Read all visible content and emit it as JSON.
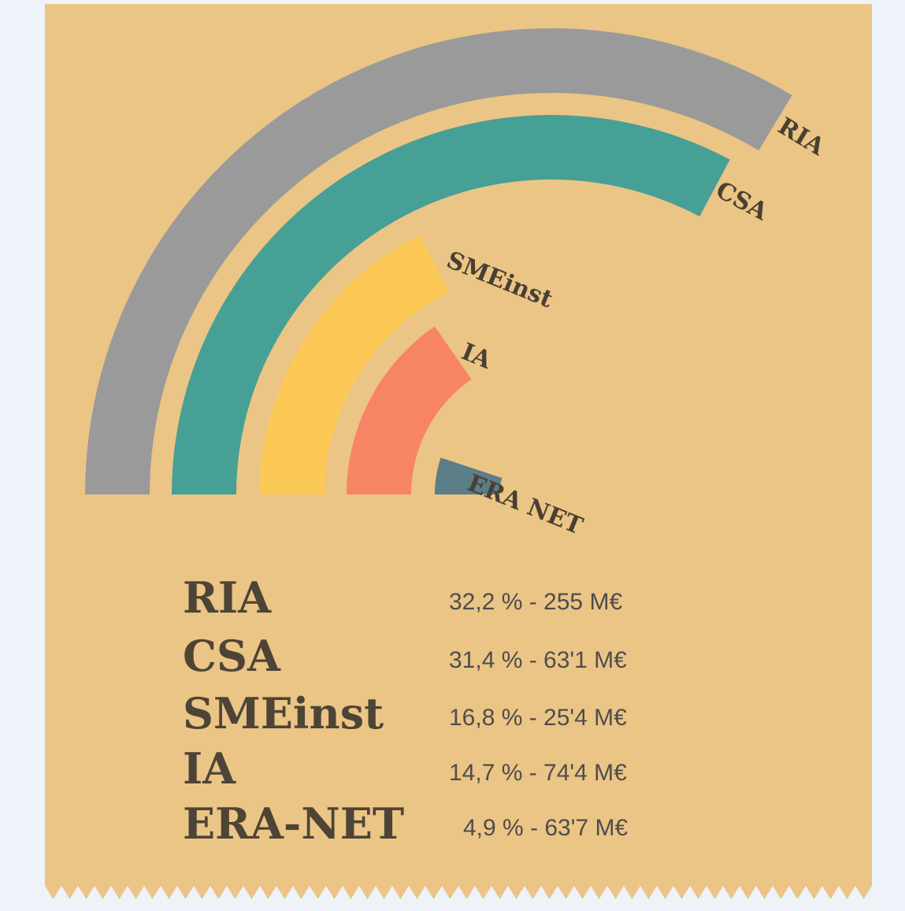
{
  "chart_data": {
    "type": "radial-bar",
    "categories": [
      "RIA",
      "CSA",
      "SMEinst",
      "IA",
      "ERA NET"
    ],
    "values": [
      32.2,
      31.4,
      16.8,
      14.7,
      4.9
    ],
    "colors": [
      "#9a9a9a",
      "#47a096",
      "#fcc957",
      "#f88466",
      "#5b7e89"
    ],
    "legend": {
      "names": [
        "RIA",
        "CSA",
        "SMEinst",
        "IA",
        "ERA-NET"
      ],
      "value_labels": [
        "32,2 % - 255 M€",
        "31,4 % - 63'1 M€",
        "16,8 % - 25'4 M€",
        "14,7 % - 74'4 M€",
        "4,9 % - 63'7 M€"
      ]
    }
  }
}
